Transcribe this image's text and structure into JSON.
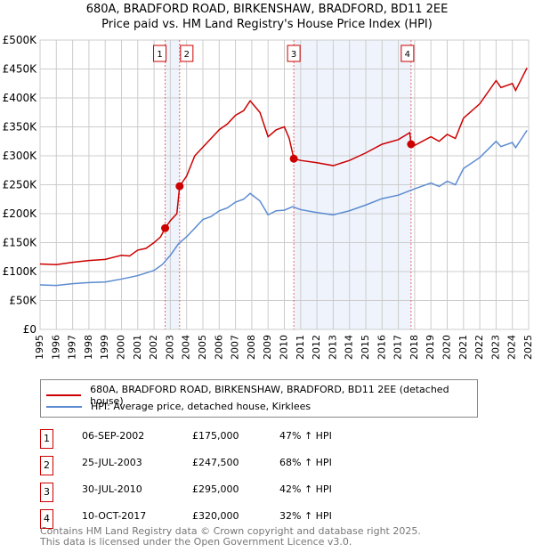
{
  "chart_data": {
    "type": "line",
    "title": "680A, BRADFORD ROAD, BIRKENSHAW, BRADFORD, BD11 2EE",
    "subtitle": "Price paid vs. HM Land Registry's House Price Index (HPI)",
    "xlim": [
      1995,
      2025
    ],
    "ylim": [
      0,
      500000
    ],
    "x_ticks": [
      "1995",
      "1996",
      "1997",
      "1998",
      "1999",
      "2000",
      "2001",
      "2002",
      "2003",
      "2004",
      "2005",
      "2006",
      "2007",
      "2008",
      "2009",
      "2010",
      "2011",
      "2012",
      "2013",
      "2014",
      "2015",
      "2016",
      "2017",
      "2018",
      "2019",
      "2020",
      "2021",
      "2022",
      "2023",
      "2024",
      "2025"
    ],
    "y_ticks": [
      {
        "v": 0,
        "label": "£0"
      },
      {
        "v": 50000,
        "label": "£50K"
      },
      {
        "v": 100000,
        "label": "£100K"
      },
      {
        "v": 150000,
        "label": "£150K"
      },
      {
        "v": 200000,
        "label": "£200K"
      },
      {
        "v": 250000,
        "label": "£250K"
      },
      {
        "v": 300000,
        "label": "£300K"
      },
      {
        "v": 350000,
        "label": "£350K"
      },
      {
        "v": 400000,
        "label": "£400K"
      },
      {
        "v": 450000,
        "label": "£450K"
      },
      {
        "v": 500000,
        "label": "£500K"
      }
    ],
    "grid": true,
    "series": [
      {
        "name": "680A, BRADFORD ROAD, BIRKENSHAW, BRADFORD, BD11 2EE (detached house)",
        "color": "#cc0000",
        "x": [
          1995,
          1996,
          1997,
          1998,
          1999,
          2000,
          2000.5,
          2001,
          2001.5,
          2002,
          2002.4,
          2002.68,
          2003,
          2003.4,
          2003.57,
          2004,
          2004.5,
          2005,
          2005.5,
          2006,
          2006.5,
          2007,
          2007.5,
          2007.9,
          2008.5,
          2009,
          2009.5,
          2010,
          2010.3,
          2010.58,
          2011,
          2012,
          2013,
          2014,
          2015,
          2016,
          2017,
          2017.7,
          2017.78,
          2018,
          2019,
          2019.5,
          2020,
          2020.5,
          2021,
          2022,
          2023,
          2023.3,
          2024,
          2024.2,
          2024.9
        ],
        "y": [
          113000,
          112000,
          116000,
          119000,
          121000,
          128000,
          127000,
          137000,
          140000,
          150000,
          160000,
          175000,
          188000,
          200000,
          247500,
          265000,
          300000,
          315000,
          330000,
          345000,
          355000,
          370000,
          378000,
          395000,
          375000,
          333000,
          345000,
          350000,
          330000,
          295000,
          292000,
          288000,
          283000,
          292000,
          305000,
          320000,
          328000,
          340000,
          320000,
          318000,
          333000,
          325000,
          337000,
          330000,
          365000,
          390000,
          430000,
          418000,
          425000,
          413000,
          452000
        ]
      },
      {
        "name": "HPI: Average price, detached house, Kirklees",
        "color": "#5b8bd0",
        "x": [
          1995,
          1996,
          1997,
          1998,
          1999,
          2000,
          2001,
          2002,
          2002.5,
          2003,
          2003.5,
          2004,
          2004.5,
          2005,
          2005.5,
          2006,
          2006.5,
          2007,
          2007.5,
          2007.9,
          2008.5,
          2009,
          2009.5,
          2010,
          2010.5,
          2011,
          2012,
          2013,
          2014,
          2015,
          2016,
          2017,
          2018,
          2019,
          2019.5,
          2020,
          2020.5,
          2021,
          2022,
          2023,
          2023.3,
          2024,
          2024.2,
          2024.9
        ],
        "y": [
          77000,
          76000,
          79000,
          81000,
          82000,
          87000,
          93000,
          102000,
          112000,
          128000,
          148000,
          160000,
          175000,
          190000,
          195000,
          205000,
          210000,
          220000,
          225000,
          235000,
          222000,
          198000,
          205000,
          206000,
          212000,
          207000,
          202000,
          198000,
          205000,
          215000,
          226000,
          232000,
          243000,
          253000,
          247000,
          256000,
          250000,
          278000,
          297000,
          325000,
          316000,
          323000,
          314000,
          344000
        ]
      }
    ],
    "transactions": [
      {
        "id": "1",
        "date": "06-SEP-2002",
        "x": 2002.68,
        "price_value": 175000,
        "price": "£175,000",
        "hpi": "47% ↑ HPI"
      },
      {
        "id": "2",
        "date": "25-JUL-2003",
        "x": 2003.57,
        "price_value": 247500,
        "price": "£247,500",
        "hpi": "68% ↑ HPI"
      },
      {
        "id": "3",
        "date": "30-JUL-2010",
        "x": 2010.58,
        "price_value": 295000,
        "price": "£295,000",
        "hpi": "42% ↑ HPI"
      },
      {
        "id": "4",
        "date": "10-OCT-2017",
        "x": 2017.78,
        "price_value": 320000,
        "price": "£320,000",
        "hpi": "32% ↑ HPI"
      }
    ],
    "shaded_ranges": [
      [
        2002.68,
        2003.57
      ],
      [
        2010.58,
        2017.78
      ]
    ]
  },
  "footer": {
    "line1": "Contains HM Land Registry data © Crown copyright and database right 2025.",
    "line2": "This data is licensed under the Open Government Licence v3.0."
  }
}
